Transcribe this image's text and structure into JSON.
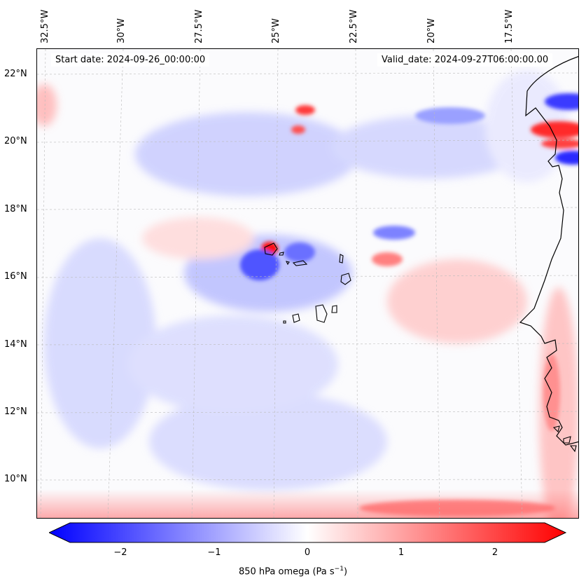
{
  "map": {
    "lon_labels": [
      "32.5°W",
      "30°W",
      "27.5°W",
      "25°W",
      "22.5°W",
      "20°W",
      "17.5°W"
    ],
    "lat_labels": [
      "22°N",
      "20°N",
      "18°N",
      "16°N",
      "14°N",
      "12°N",
      "10°N"
    ],
    "start_date": "Start date: 2024-09-26_00:00:00",
    "valid_date": "Valid_date: 2024-09-27T06:00:00.00",
    "field": "850 hPa omega",
    "extent": {
      "lon": [
        -33.2,
        -16.6
      ],
      "lat": [
        8.8,
        22.8
      ]
    },
    "gridlines": "dashed"
  },
  "colorbar": {
    "ticks": [
      "−2",
      "−1",
      "0",
      "1",
      "2"
    ],
    "range": [
      -2.6,
      2.6
    ],
    "label_prefix": "850 hPa omega (Pa s",
    "label_exp": "−1",
    "label_suffix": ")",
    "colors": {
      "neg": "#0000ff",
      "mid": "#ffffff",
      "pos": "#ff0000"
    }
  }
}
